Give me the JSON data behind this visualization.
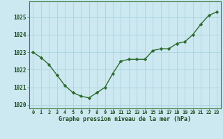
{
  "x": [
    0,
    1,
    2,
    3,
    4,
    5,
    6,
    7,
    8,
    9,
    10,
    11,
    12,
    13,
    14,
    15,
    16,
    17,
    18,
    19,
    20,
    21,
    22,
    23
  ],
  "y": [
    1023.0,
    1022.7,
    1022.3,
    1021.7,
    1021.1,
    1020.7,
    1020.5,
    1020.4,
    1020.7,
    1021.0,
    1021.8,
    1022.5,
    1022.6,
    1022.6,
    1022.6,
    1023.1,
    1023.2,
    1023.2,
    1023.5,
    1023.6,
    1024.0,
    1024.6,
    1025.1,
    1025.3
  ],
  "line_color": "#2d6a2d",
  "marker": "D",
  "marker_size": 2.2,
  "bg_color": "#cce8f0",
  "grid_color": "#aad4dd",
  "xlabel": "Graphe pression niveau de la mer (hPa)",
  "xlabel_color": "#1a4a1a",
  "tick_color": "#1a4a1a",
  "ylim": [
    1019.8,
    1025.9
  ],
  "yticks": [
    1020,
    1021,
    1022,
    1023,
    1024,
    1025
  ],
  "xticks": [
    0,
    1,
    2,
    3,
    4,
    5,
    6,
    7,
    8,
    9,
    10,
    11,
    12,
    13,
    14,
    15,
    16,
    17,
    18,
    19,
    20,
    21,
    22,
    23
  ],
  "spine_color": "#3a7a3a",
  "linewidth": 1.0
}
